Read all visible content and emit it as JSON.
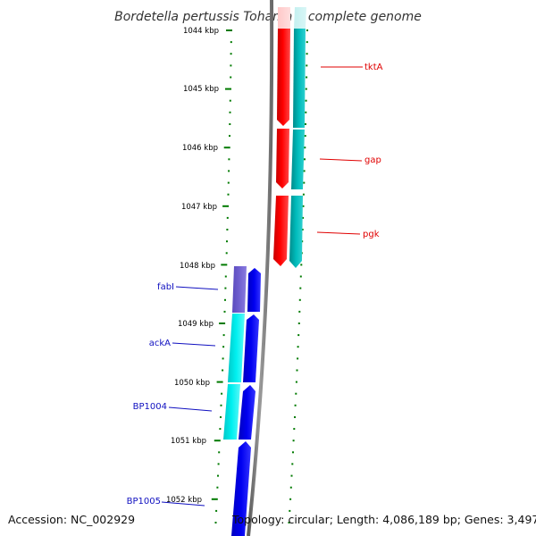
{
  "title": "Bordetella pertussis Tohama I, complete genome",
  "footer": {
    "accession": "Accession: NC_002929",
    "topology": "Topology: circular; Length: 4,086,189 bp; Genes: 3,497"
  },
  "colors": {
    "forward_strand": "#ff0000",
    "forward_cds": "#00b5b5",
    "reverse_strand": "#0000ee",
    "reverse_cds": "#00e8e8",
    "reverse_gene_fabI": "#6a5acd",
    "backbone": "#808080",
    "ticks": "#007a00"
  },
  "scale_labels": [
    "1044 kbp",
    "1045 kbp",
    "1046 kbp",
    "1047 kbp",
    "1048 kbp",
    "1049 kbp",
    "1050 kbp",
    "1051 kbp",
    "1052 kbp"
  ],
  "genes": {
    "tktA": "tktA",
    "gap": "gap",
    "pgk": "pgk",
    "fabI": "fabI",
    "ackA": "ackA",
    "BP1004": "BP1004",
    "BP1005": "BP1005"
  }
}
